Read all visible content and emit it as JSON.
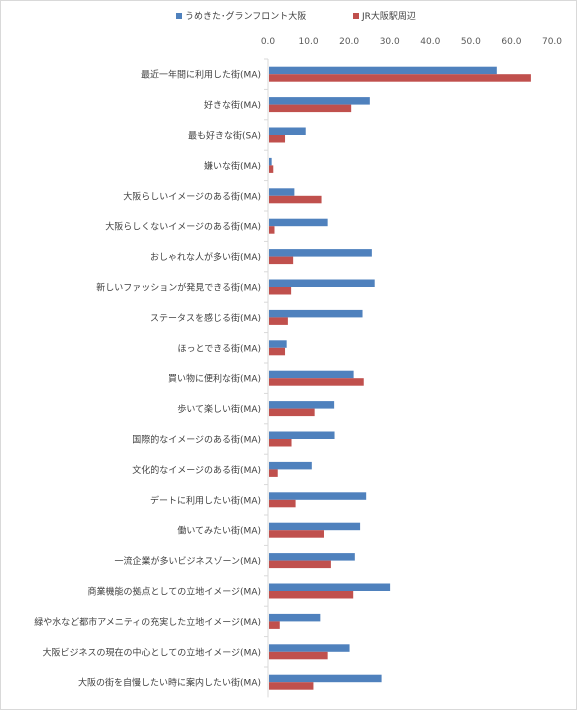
{
  "chart_data": {
    "type": "bar",
    "orientation": "horizontal",
    "grid": false,
    "legend_position": "top",
    "xlim": [
      0,
      70
    ],
    "x_ticks": [
      "0.0",
      "10.0",
      "20.0",
      "30.0",
      "40.0",
      "50.0",
      "60.0",
      "70.0"
    ],
    "categories": [
      "最近一年間に利用した街(MA)",
      "好きな街(MA)",
      "最も好きな街(SA)",
      "嫌いな街(MA)",
      "大阪らしいイメージのある街(MA)",
      "大阪らしくないイメージのある街(MA)",
      "おしゃれな人が多い街(MA)",
      "新しいファッションが発見できる街(MA)",
      "ステータスを感じる街(MA)",
      "ほっとできる街(MA)",
      "買い物に便利な街(MA)",
      "歩いて楽しい街(MA)",
      "国際的なイメージのある街(MA)",
      "文化的なイメージのある街(MA)",
      "デートに利用したい街(MA)",
      "働いてみたい街(MA)",
      "一流企業が多いビジネスゾーン(MA)",
      "商業機能の拠点としての立地イメージ(MA)",
      "緑や水など都市アメニティの充実した立地イメージ(MA)",
      "大阪ビジネスの現在の中心としての立地イメージ(MA)",
      "大阪の街を自慢したい時に案内したい街(MA)"
    ],
    "series": [
      {
        "name": "うめきた･グランフロント大阪",
        "color": "#4f81bd",
        "values": [
          56.4,
          25.1,
          9.3,
          0.9,
          6.5,
          14.7,
          25.6,
          26.3,
          23.3,
          4.6,
          21.1,
          16.3,
          16.4,
          10.8,
          24.2,
          22.7,
          21.4,
          30.1,
          12.9,
          20.1,
          28.0
        ]
      },
      {
        "name": "JR大阪駅周辺",
        "color": "#c0504d",
        "values": [
          64.8,
          20.5,
          4.2,
          1.3,
          13.2,
          1.6,
          6.2,
          5.7,
          4.9,
          4.2,
          23.6,
          11.5,
          5.8,
          2.4,
          6.8,
          13.8,
          15.5,
          21.0,
          2.9,
          14.7,
          11.2
        ]
      }
    ]
  }
}
